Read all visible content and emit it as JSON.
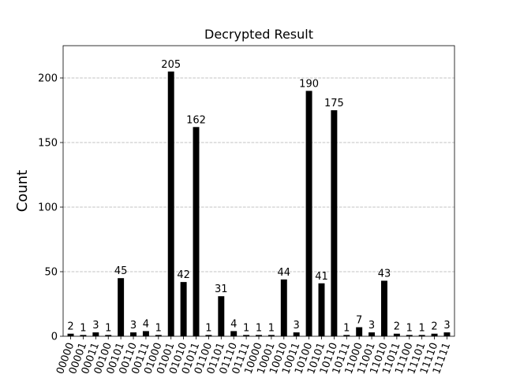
{
  "chart_data": {
    "type": "bar",
    "title": "Decrypted Result",
    "xlabel": "",
    "ylabel": "Count",
    "ylim": [
      0,
      225
    ],
    "yticks": [
      0,
      50,
      100,
      150,
      200
    ],
    "grid": "horizontal-dashed",
    "bar_color": "#000000",
    "categories": [
      "00000",
      "00001",
      "00011",
      "00100",
      "00101",
      "00110",
      "00111",
      "01000",
      "01001",
      "01010",
      "01011",
      "01100",
      "01101",
      "01110",
      "01111",
      "10000",
      "10001",
      "10010",
      "10011",
      "10100",
      "10101",
      "10110",
      "10111",
      "11000",
      "11001",
      "11010",
      "11011",
      "11100",
      "11101",
      "11110",
      "11111"
    ],
    "values": [
      2,
      1,
      3,
      1,
      45,
      3,
      4,
      1,
      205,
      42,
      162,
      1,
      31,
      4,
      1,
      1,
      1,
      44,
      3,
      190,
      41,
      175,
      1,
      7,
      3,
      43,
      2,
      1,
      1,
      2,
      3
    ]
  }
}
